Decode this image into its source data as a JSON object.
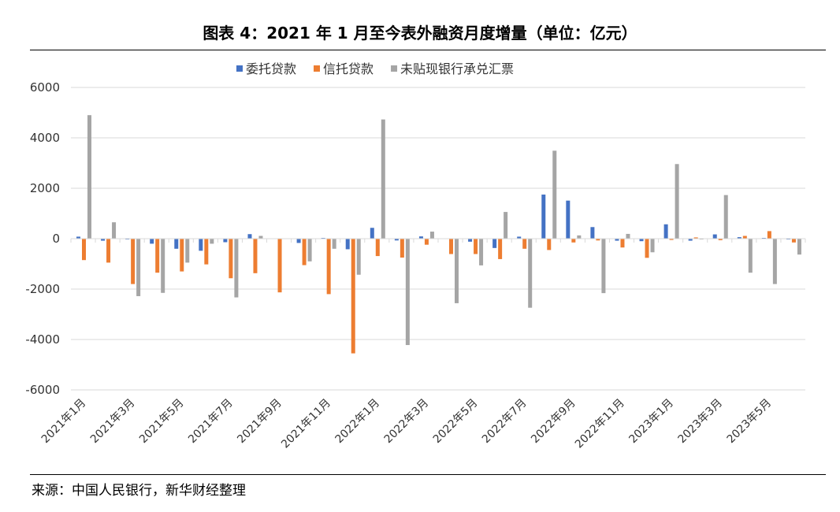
{
  "title": "图表 4：2021 年 1 月至今表外融资月度增量（单位：亿元）",
  "source": "来源：中国人民银行，新华财经整理",
  "chart_data": {
    "type": "bar",
    "title": "图表 4：2021 年 1 月至今表外融资月度增量（单位：亿元）",
    "xlabel": "",
    "ylabel": "",
    "ylim": [
      -6000,
      6000
    ],
    "yticks": [
      6000,
      4000,
      2000,
      0,
      -2000,
      -4000,
      -6000
    ],
    "grid": true,
    "legend_position": "top",
    "categories": [
      "2021年1月",
      "2021年2月",
      "2021年3月",
      "2021年4月",
      "2021年5月",
      "2021年6月",
      "2021年7月",
      "2021年8月",
      "2021年9月",
      "2021年10月",
      "2021年11月",
      "2021年12月",
      "2022年1月",
      "2022年2月",
      "2022年3月",
      "2022年4月",
      "2022年5月",
      "2022年6月",
      "2022年7月",
      "2022年8月",
      "2022年9月",
      "2022年10月",
      "2022年11月",
      "2022年12月",
      "2023年1月",
      "2023年2月",
      "2023年3月",
      "2023年4月",
      "2023年5月",
      "2023年6月"
    ],
    "shown_tick_labels": [
      "2021年1月",
      "2021年3月",
      "2021年5月",
      "2021年7月",
      "2021年9月",
      "2021年11月",
      "2022年1月",
      "2022年3月",
      "2022年5月",
      "2022年7月",
      "2022年9月",
      "2022年11月",
      "2023年1月",
      "2023年3月",
      "2023年5月"
    ],
    "series": [
      {
        "name": "委托贷款",
        "color": "#4472C4",
        "values": [
          80,
          -80,
          -30,
          -200,
          -400,
          -480,
          -140,
          180,
          0,
          -170,
          30,
          -420,
          430,
          -70,
          90,
          0,
          -120,
          -370,
          80,
          1750,
          1510,
          460,
          -80,
          -100,
          570,
          -80,
          170,
          60,
          30,
          -30
        ]
      },
      {
        "name": "信托贷款",
        "color": "#ED7D31",
        "values": [
          -850,
          -950,
          -1800,
          -1350,
          -1300,
          -1020,
          -1570,
          -1370,
          -2130,
          -1050,
          -2200,
          -4550,
          -690,
          -750,
          -240,
          -610,
          -610,
          -810,
          -400,
          -450,
          -150,
          -70,
          -350,
          -760,
          -50,
          50,
          -60,
          110,
          300,
          -150
        ]
      },
      {
        "name": "未贴现银行承兑汇票",
        "color": "#A5A5A5",
        "values": [
          4900,
          650,
          -2280,
          -2150,
          -950,
          -200,
          -2330,
          110,
          0,
          -900,
          -400,
          -1430,
          4730,
          -4220,
          280,
          -2560,
          -1060,
          1060,
          -2740,
          3490,
          130,
          -2160,
          190,
          -540,
          2960,
          -30,
          1730,
          -1350,
          -1800,
          -630
        ]
      }
    ]
  }
}
